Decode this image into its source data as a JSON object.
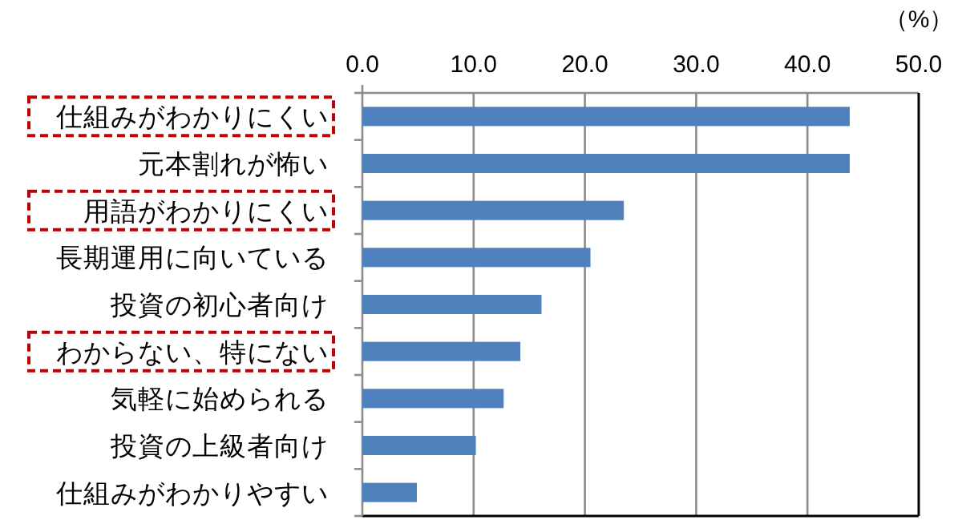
{
  "chart_data": {
    "type": "bar",
    "orientation": "horizontal",
    "xlabel": "（%）",
    "categories": [
      "仕組みがわかりにくい",
      "元本割れが怖い",
      "用語がわかりにくい",
      "長期運用に向いている",
      "投資の初心者向け",
      "わからない、特にない",
      "気軽に始められる",
      "投資の上級者向け",
      "仕組みがわかりやすい"
    ],
    "values": [
      43.8,
      43.8,
      23.5,
      20.5,
      16.1,
      14.2,
      12.7,
      10.2,
      4.9
    ],
    "color": "#4f81bd",
    "xlim": [
      0,
      50
    ],
    "xticks": [
      {
        "value": 0,
        "label": "0.0"
      },
      {
        "value": 10,
        "label": "10.0"
      },
      {
        "value": 20,
        "label": "20.0"
      },
      {
        "value": 30,
        "label": "30.0"
      },
      {
        "value": 40,
        "label": "40.0"
      },
      {
        "value": 50,
        "label": "50.0"
      }
    ],
    "grid": "x"
  }
}
